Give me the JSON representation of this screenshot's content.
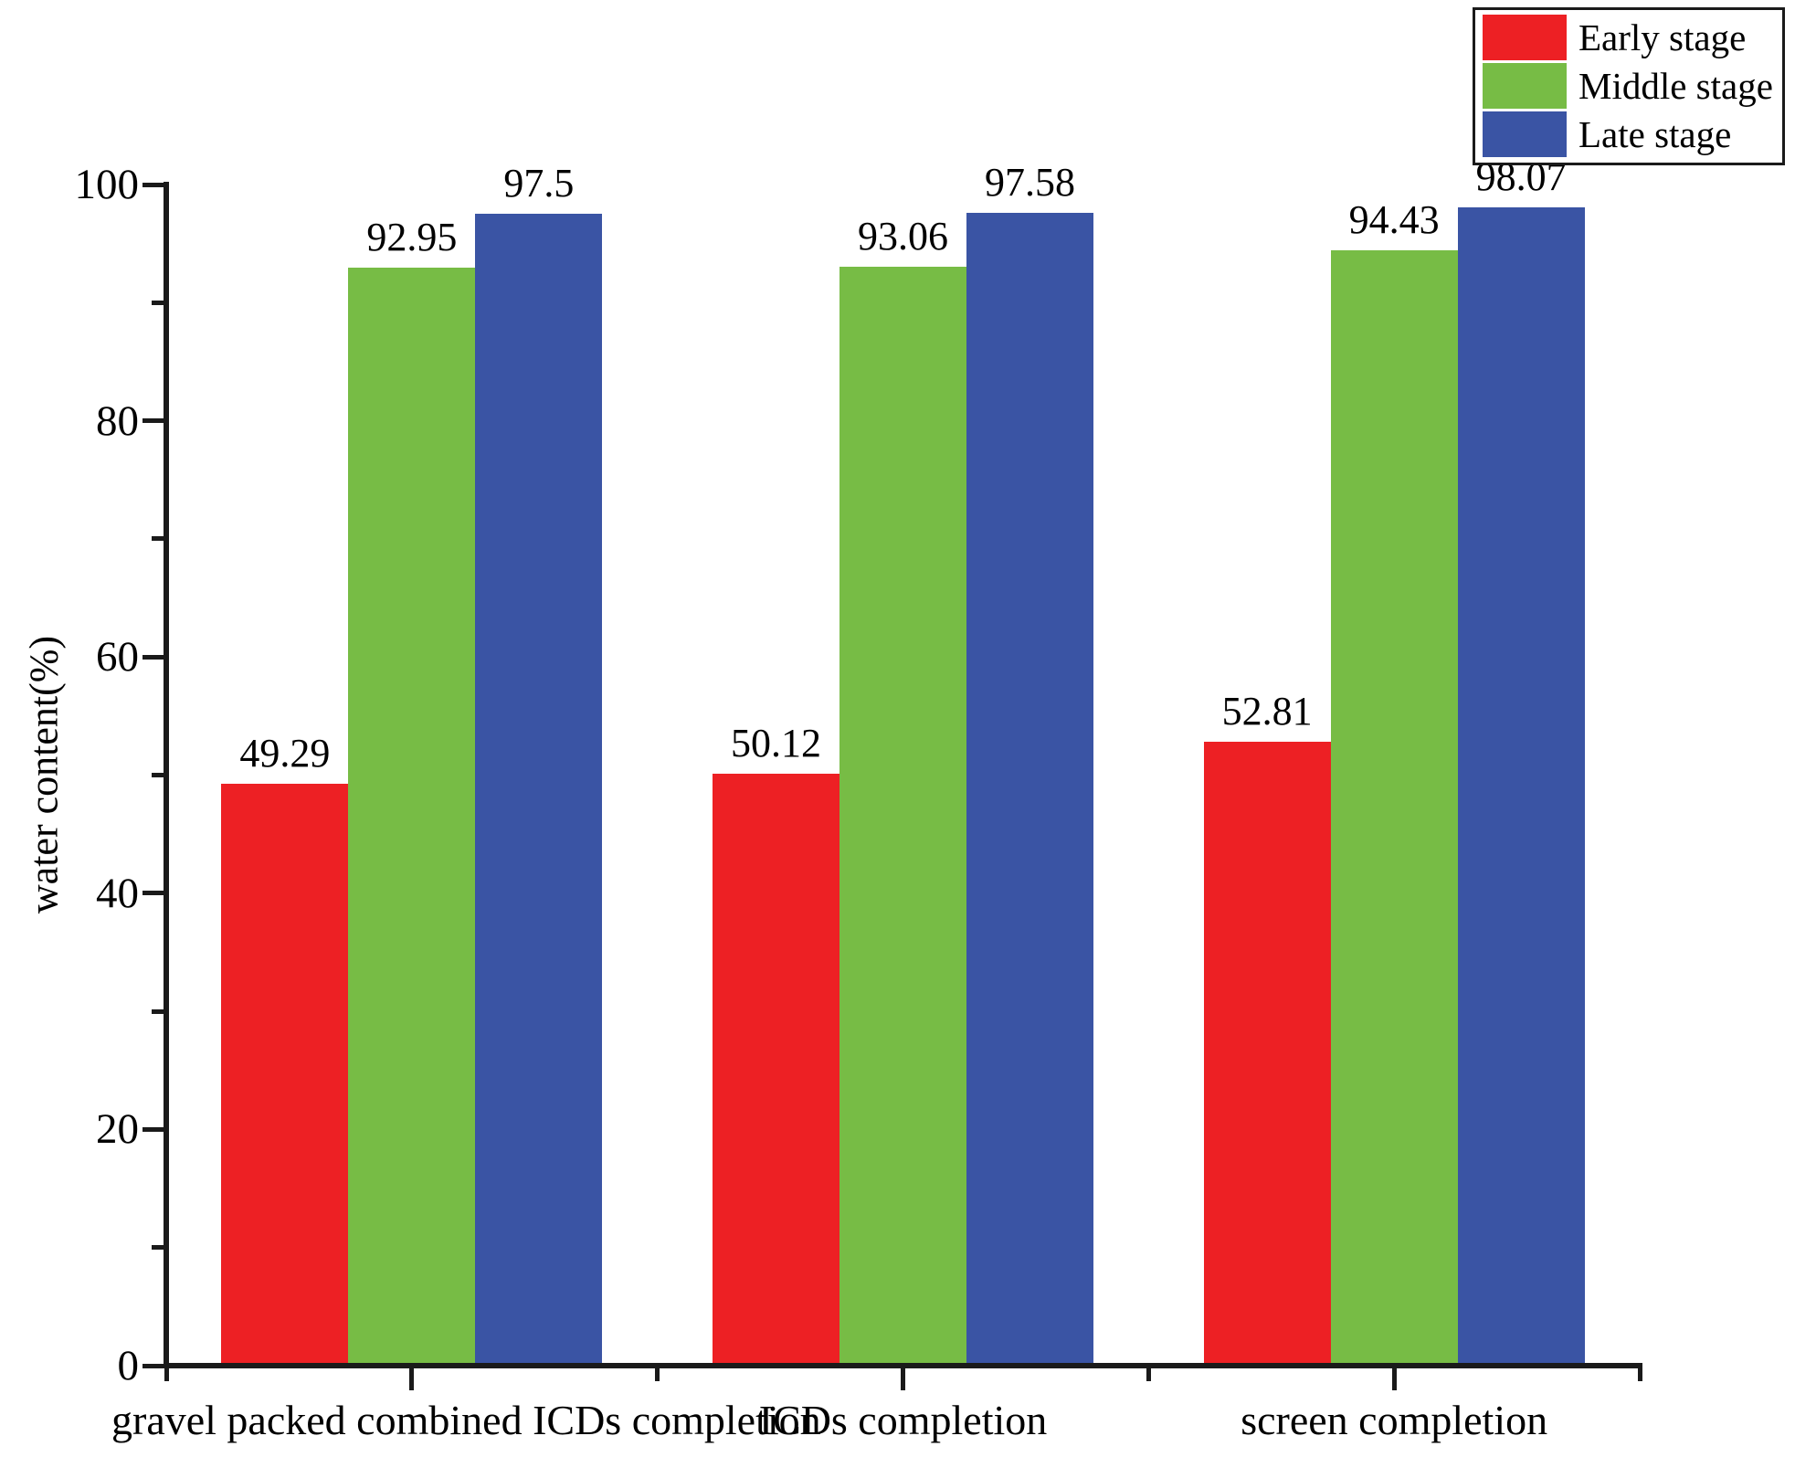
{
  "figure": {
    "background": "#ffffff",
    "axis_color": "#1a1a1a"
  },
  "y_axis": {
    "title": "water content(%)",
    "min": 0,
    "max": 100,
    "major_ticks": [
      0,
      20,
      40,
      60,
      80,
      100
    ],
    "minor_ticks": [
      10,
      30,
      50,
      70,
      90
    ],
    "tick_labels": [
      "0",
      "20",
      "40",
      "60",
      "80",
      "100"
    ]
  },
  "x_axis": {
    "categories": [
      "gravel packed combined ICDs completion",
      "ICDs completion",
      "screen completion"
    ]
  },
  "legend": {
    "position": "top-right",
    "items": [
      {
        "label": "Early stage",
        "color": "#ED2024"
      },
      {
        "label": "Middle stage",
        "color": "#77BC45"
      },
      {
        "label": "Late stage",
        "color": "#3A54A4"
      }
    ]
  },
  "chart_data": {
    "type": "bar",
    "title": "",
    "xlabel": "",
    "ylabel": "water content(%)",
    "ylim": [
      0,
      100
    ],
    "grid": false,
    "legend_position": "top-right",
    "value_labels": true,
    "categories": [
      "gravel packed combined ICDs completion",
      "ICDs completion",
      "screen completion"
    ],
    "series": [
      {
        "name": "Early stage",
        "color": "#ED2024",
        "values": [
          49.29,
          50.12,
          52.81
        ]
      },
      {
        "name": "Middle stage",
        "color": "#77BC45",
        "values": [
          92.95,
          93.06,
          94.43
        ]
      },
      {
        "name": "Late stage",
        "color": "#3A54A4",
        "values": [
          97.5,
          97.58,
          98.07
        ]
      }
    ]
  }
}
